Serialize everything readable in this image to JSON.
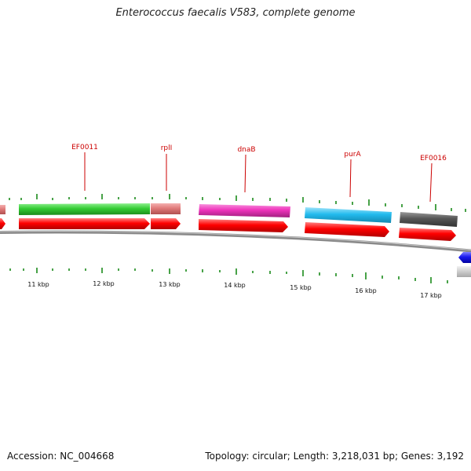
{
  "title": "Enterococcus faecalis V583, complete genome",
  "accession": "Accession: NC_004668",
  "summary": "Topology: circular; Length: 3,218,031 bp; Genes: 3,192",
  "colors": {
    "cds": "#ff0000",
    "backbone": "#999999",
    "tick": "#1a8a1a",
    "label": "#cc0000"
  },
  "genes": [
    {
      "name": "EF0011",
      "color": "#33cc33"
    },
    {
      "name": "rplI",
      "color": "#e88080"
    },
    {
      "name": "dnaB",
      "color": "#ee33bb"
    },
    {
      "name": "purA",
      "color": "#33bbee"
    },
    {
      "name": "EF0016",
      "color": "#555555"
    }
  ],
  "kbp_labels": [
    "11 kbp",
    "12 kbp",
    "13 kbp",
    "14 kbp",
    "15 kbp",
    "16 kbp",
    "17 kbp"
  ]
}
